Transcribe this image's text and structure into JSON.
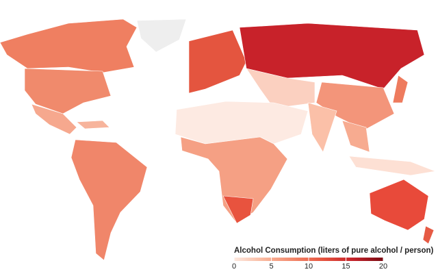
{
  "legend": {
    "title": "Alcohol Consumption (liters of pure alcohol / person)",
    "range": [
      0,
      20
    ],
    "ticks": [
      0,
      5,
      10,
      15,
      20
    ],
    "colors": [
      "#fde9e0",
      "#f9b89e",
      "#f2876a",
      "#e5533f",
      "#c4222a",
      "#7a0c14"
    ]
  }
}
